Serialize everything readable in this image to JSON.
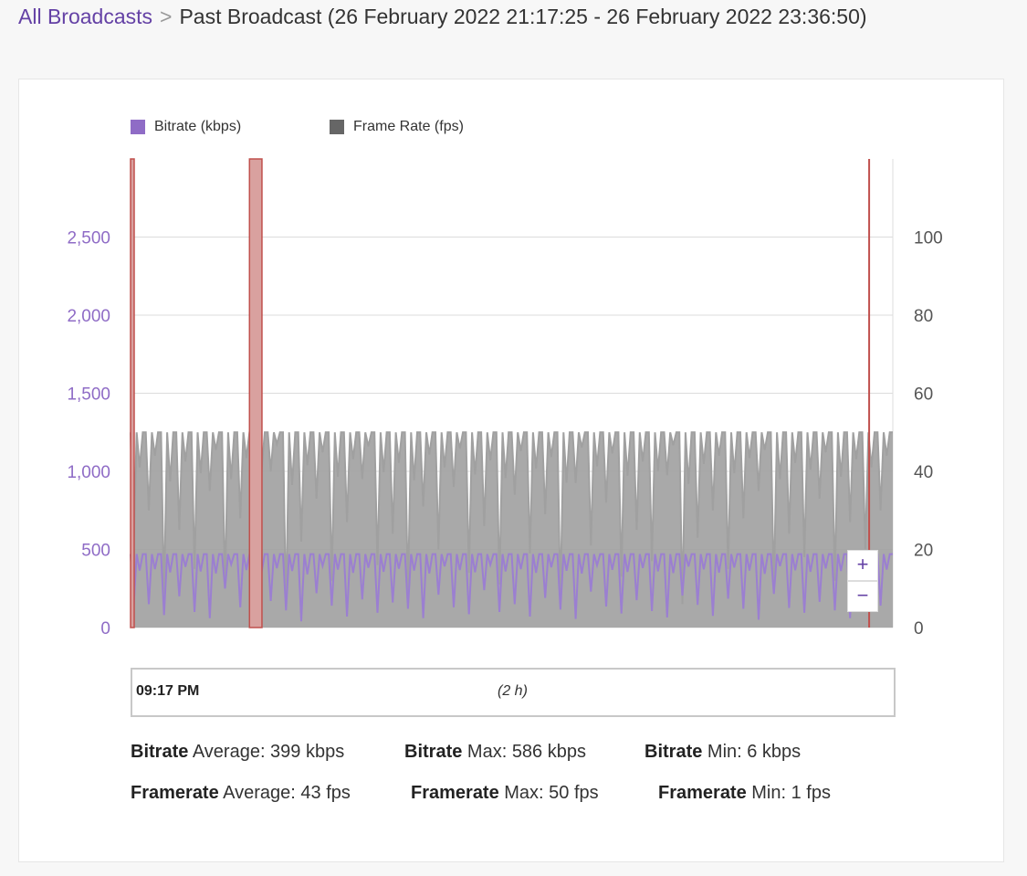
{
  "breadcrumb": {
    "link": "All Broadcasts",
    "separator": ">",
    "current": "Past Broadcast (26 February 2022 21:17:25 - 26 February 2022 23:36:50)"
  },
  "chart_data": {
    "type": "area",
    "legend_position": "top-left",
    "grid": true,
    "series": [
      {
        "name": "Bitrate (kbps)",
        "axis": "left",
        "color": "#9b7fd1",
        "baseline": 470,
        "dips": [
          120,
          150,
          80,
          200,
          100,
          60,
          250,
          130,
          90,
          170,
          110,
          40,
          220,
          140,
          70,
          180,
          95,
          160,
          120,
          60,
          210,
          130,
          85,
          240,
          100,
          150,
          70,
          190,
          115,
          55,
          230,
          135,
          90,
          175,
          105,
          65,
          205,
          145,
          75,
          185,
          120,
          50,
          215,
          125,
          95,
          165,
          110,
          60,
          195,
          140
        ]
      },
      {
        "name": "Frame Rate (fps)",
        "axis": "right",
        "color": "#a0a0a0",
        "baseline": 50,
        "dips": [
          20,
          30,
          8,
          25,
          15,
          35,
          10,
          28,
          18,
          40,
          5,
          22,
          33,
          12,
          27,
          38,
          16,
          24,
          9,
          31,
          20,
          36,
          14,
          26,
          11,
          34,
          19,
          29,
          7,
          37,
          21,
          32,
          13,
          25,
          17,
          39,
          6,
          23,
          30,
          15,
          28,
          35,
          10,
          24,
          18,
          33,
          12,
          27,
          20,
          30
        ]
      }
    ],
    "y_left": {
      "ticks": [
        "0",
        "500",
        "1,000",
        "1,500",
        "2,000",
        "2,500"
      ],
      "values": [
        0,
        500,
        1000,
        1500,
        2000,
        2500
      ],
      "range": [
        0,
        3000
      ],
      "color": "#8f6cc6"
    },
    "y_right": {
      "ticks": [
        "0",
        "20",
        "40",
        "60",
        "80",
        "100"
      ],
      "values": [
        0,
        20,
        40,
        60,
        80,
        100
      ],
      "range": [
        0,
        120
      ],
      "color": "#555555"
    },
    "x_range_hours": [
      0,
      2.32
    ],
    "offline_bands_hours": [
      [
        0.0,
        0.011
      ],
      [
        0.362,
        0.4
      ]
    ],
    "offline_line_hours": 2.248,
    "band_color": "#d9a19f",
    "band_border": "#c0504d"
  },
  "legend": {
    "bitrate": "Bitrate (kbps)",
    "framerate": "Frame Rate (fps)",
    "bitrate_color": "#8f6cc6",
    "framerate_color": "#666666"
  },
  "zoom": {
    "in": "+",
    "out": "−"
  },
  "navigator": {
    "start": "09:17 PM",
    "duration": "(2 h)"
  },
  "stats": {
    "bitrate_avg": {
      "label": "Bitrate",
      "text": " Average: 399 kbps"
    },
    "bitrate_max": {
      "label": "Bitrate",
      "text": " Max: 586 kbps"
    },
    "bitrate_min": {
      "label": "Bitrate",
      "text": " Min: 6 kbps"
    },
    "framerate_avg": {
      "label": "Framerate",
      "text": " Average: 43 fps"
    },
    "framerate_max": {
      "label": "Framerate",
      "text": " Max: 50 fps"
    },
    "framerate_min": {
      "label": "Framerate",
      "text": " Min: 1 fps"
    }
  }
}
